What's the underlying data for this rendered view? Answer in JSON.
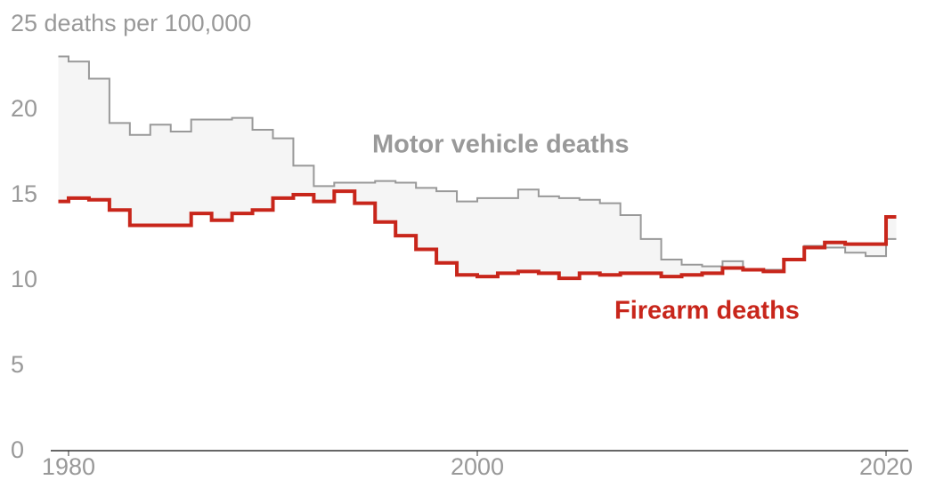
{
  "chart_data": {
    "type": "step",
    "x": [
      1979,
      1980,
      1981,
      1982,
      1983,
      1984,
      1985,
      1986,
      1987,
      1988,
      1989,
      1990,
      1991,
      1992,
      1993,
      1994,
      1995,
      1996,
      1997,
      1998,
      1999,
      2000,
      2001,
      2002,
      2003,
      2004,
      2005,
      2006,
      2007,
      2008,
      2009,
      2010,
      2011,
      2012,
      2013,
      2014,
      2015,
      2016,
      2017,
      2018,
      2019,
      2020
    ],
    "series": [
      {
        "name": "Motor vehicle deaths",
        "color": "#999999",
        "values": [
          23.1,
          22.8,
          21.8,
          19.2,
          18.5,
          19.1,
          18.7,
          19.4,
          19.4,
          19.5,
          18.8,
          18.3,
          16.7,
          15.5,
          15.7,
          15.7,
          15.8,
          15.7,
          15.4,
          15.2,
          14.6,
          14.8,
          14.8,
          15.3,
          14.9,
          14.8,
          14.7,
          14.5,
          13.8,
          12.4,
          11.2,
          10.9,
          10.8,
          11.1,
          10.6,
          10.6,
          11.2,
          12.0,
          11.9,
          11.6,
          11.4,
          12.4
        ]
      },
      {
        "name": "Firearm deaths",
        "color": "#c8261b",
        "values": [
          14.6,
          14.8,
          14.7,
          14.1,
          13.2,
          13.2,
          13.2,
          13.9,
          13.5,
          13.9,
          14.1,
          14.8,
          15.0,
          14.6,
          15.2,
          14.5,
          13.4,
          12.6,
          11.8,
          11.0,
          10.3,
          10.2,
          10.4,
          10.5,
          10.4,
          10.1,
          10.4,
          10.3,
          10.4,
          10.4,
          10.2,
          10.3,
          10.4,
          10.7,
          10.6,
          10.5,
          11.2,
          11.9,
          12.2,
          12.1,
          12.1,
          13.7
        ]
      }
    ],
    "xlim": [
      1979.5,
      2020.5
    ],
    "xticks": [
      1980,
      2000,
      2020
    ],
    "ylim": [
      0,
      25
    ],
    "yticks": [
      0,
      5,
      10,
      15,
      20,
      {
        "value": 25,
        "label": "25 deaths per 100,000"
      }
    ],
    "area_fill": "#f5f5f5"
  }
}
